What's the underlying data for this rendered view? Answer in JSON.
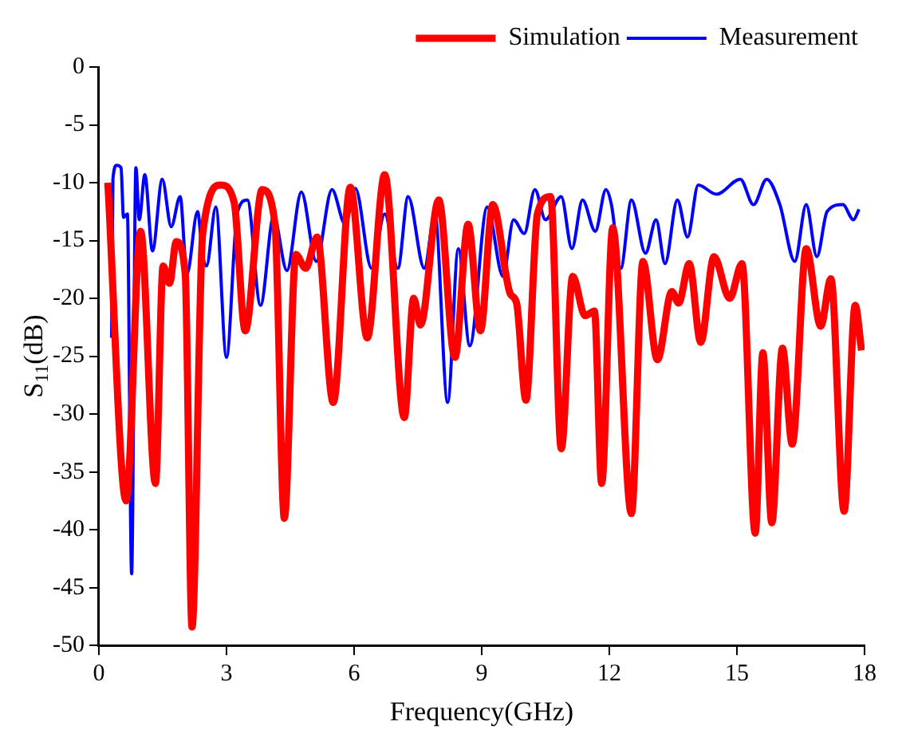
{
  "chart_data": {
    "type": "line",
    "xlabel": "Frequency(GHz)",
    "ylabel": "S$_{11}$(dB)",
    "xlim": [
      0,
      18
    ],
    "xticks": [
      0,
      3,
      6,
      9,
      12,
      15,
      18
    ],
    "ylim": [
      -50,
      0
    ],
    "yticks": [
      -50,
      -45,
      -40,
      -35,
      -30,
      -25,
      -20,
      -15,
      -10,
      -5,
      0
    ],
    "grid": false,
    "legend": "top right",
    "marker": "none",
    "line_style": "solid",
    "series": [
      {
        "name": "Simulation",
        "color": "#ff0000",
        "x": [
          0.21,
          0.64,
          0.98,
          1.33,
          1.51,
          1.66,
          1.82,
          2.03,
          2.19,
          2.44,
          2.87,
          3.18,
          3.44,
          3.84,
          4.14,
          4.36,
          4.63,
          4.86,
          5.13,
          5.51,
          5.91,
          6.31,
          6.72,
          7.18,
          7.4,
          7.56,
          7.99,
          8.37,
          8.68,
          8.97,
          9.26,
          9.67,
          9.82,
          10.04,
          10.31,
          10.62,
          10.87,
          11.14,
          11.43,
          11.65,
          11.82,
          12.08,
          12.52,
          12.79,
          13.13,
          13.47,
          13.63,
          13.88,
          14.15,
          14.46,
          14.83,
          15.12,
          15.43,
          15.61,
          15.82,
          16.07,
          16.3,
          16.63,
          16.97,
          17.21,
          17.52,
          17.78,
          17.93
        ],
        "values": [
          -10,
          -37.5,
          -14.2,
          -36,
          -17.2,
          -18.7,
          -15.1,
          -17.9,
          -48.4,
          -14.4,
          -10.2,
          -11.7,
          -22.8,
          -10.6,
          -13.6,
          -39,
          -16.2,
          -17.4,
          -14.7,
          -29,
          -10.4,
          -23.4,
          -9.3,
          -30.3,
          -20,
          -22.3,
          -11.5,
          -25.1,
          -13.6,
          -22.8,
          -11.9,
          -19.6,
          -20.4,
          -28.8,
          -12.7,
          -11.2,
          -33,
          -18.1,
          -21.5,
          -21.1,
          -36,
          -13.9,
          -38.6,
          -16.8,
          -25.3,
          -19.4,
          -20.4,
          -17,
          -23.8,
          -16.4,
          -20,
          -17,
          -40.3,
          -24.7,
          -39.4,
          -24.3,
          -32.6,
          -15.7,
          -22.4,
          -18.3,
          -38.4,
          -20.6,
          -24.5
        ]
      },
      {
        "name": "Measurement",
        "color": "#0000ff",
        "x": [
          0.3,
          0.33,
          0.42,
          0.52,
          0.58,
          0.67,
          0.77,
          0.87,
          0.95,
          1.08,
          1.26,
          1.49,
          1.7,
          1.91,
          2.07,
          2.32,
          2.44,
          2.53,
          2.75,
          3.0,
          3.25,
          3.49,
          3.8,
          4.11,
          4.42,
          4.76,
          5.11,
          5.48,
          5.79,
          6.03,
          6.41,
          6.72,
          7.03,
          7.27,
          7.65,
          7.9,
          8.2,
          8.45,
          8.72,
          9.13,
          9.5,
          9.75,
          10.0,
          10.25,
          10.5,
          10.87,
          11.12,
          11.37,
          11.67,
          11.92,
          12.05,
          12.27,
          12.52,
          12.85,
          13.1,
          13.31,
          13.6,
          13.84,
          14.09,
          14.52,
          15.08,
          15.39,
          15.7,
          16.01,
          16.36,
          16.63,
          16.88,
          17.12,
          17.49,
          17.74,
          17.87
        ],
        "values": [
          -23.4,
          -9.7,
          -8.5,
          -8.7,
          -13,
          -12.7,
          -43.8,
          -8.7,
          -13.2,
          -9.3,
          -15.9,
          -9.7,
          -13.8,
          -11.2,
          -17.9,
          -12.5,
          -16.3,
          -17.2,
          -12.1,
          -25.1,
          -12.7,
          -11.5,
          -20.6,
          -12.9,
          -17.6,
          -10.8,
          -16.8,
          -10.6,
          -13.6,
          -10.5,
          -17.4,
          -12.7,
          -17.4,
          -11.2,
          -17.4,
          -12.7,
          -29,
          -15.7,
          -24.1,
          -12.1,
          -18.1,
          -13.2,
          -14.4,
          -10.6,
          -13.2,
          -11.2,
          -15.7,
          -11.5,
          -14.2,
          -10.6,
          -11.9,
          -17.4,
          -11.5,
          -16.1,
          -13.2,
          -17,
          -11.5,
          -14.7,
          -10.2,
          -11,
          -9.7,
          -11.9,
          -9.7,
          -11.9,
          -16.8,
          -11.9,
          -16.4,
          -12.5,
          -11.9,
          -13.2,
          -12.3
        ]
      }
    ]
  }
}
